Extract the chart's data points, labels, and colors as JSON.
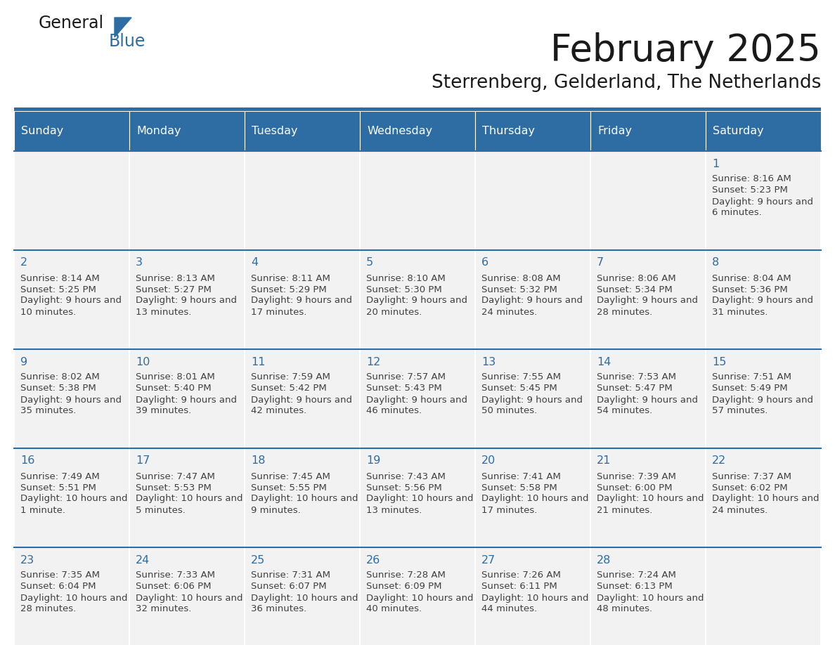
{
  "title": "February 2025",
  "subtitle": "Sterrenberg, Gelderland, The Netherlands",
  "header_bg": "#2E6DA4",
  "header_text_color": "#FFFFFF",
  "cell_bg": "#F2F2F2",
  "border_color": "#2E6DA4",
  "day_text_color": "#2E6DA4",
  "info_text_color": "#404040",
  "weekdays": [
    "Sunday",
    "Monday",
    "Tuesday",
    "Wednesday",
    "Thursday",
    "Friday",
    "Saturday"
  ],
  "logo_general_color": "#1a1a1a",
  "logo_blue_color": "#2E6DA4",
  "days": [
    {
      "day": 1,
      "col": 6,
      "row": 0,
      "sunrise": "8:16 AM",
      "sunset": "5:23 PM",
      "daylight": "9 hours and 6 minutes"
    },
    {
      "day": 2,
      "col": 0,
      "row": 1,
      "sunrise": "8:14 AM",
      "sunset": "5:25 PM",
      "daylight": "9 hours and 10 minutes"
    },
    {
      "day": 3,
      "col": 1,
      "row": 1,
      "sunrise": "8:13 AM",
      "sunset": "5:27 PM",
      "daylight": "9 hours and 13 minutes"
    },
    {
      "day": 4,
      "col": 2,
      "row": 1,
      "sunrise": "8:11 AM",
      "sunset": "5:29 PM",
      "daylight": "9 hours and 17 minutes"
    },
    {
      "day": 5,
      "col": 3,
      "row": 1,
      "sunrise": "8:10 AM",
      "sunset": "5:30 PM",
      "daylight": "9 hours and 20 minutes"
    },
    {
      "day": 6,
      "col": 4,
      "row": 1,
      "sunrise": "8:08 AM",
      "sunset": "5:32 PM",
      "daylight": "9 hours and 24 minutes"
    },
    {
      "day": 7,
      "col": 5,
      "row": 1,
      "sunrise": "8:06 AM",
      "sunset": "5:34 PM",
      "daylight": "9 hours and 28 minutes"
    },
    {
      "day": 8,
      "col": 6,
      "row": 1,
      "sunrise": "8:04 AM",
      "sunset": "5:36 PM",
      "daylight": "9 hours and 31 minutes"
    },
    {
      "day": 9,
      "col": 0,
      "row": 2,
      "sunrise": "8:02 AM",
      "sunset": "5:38 PM",
      "daylight": "9 hours and 35 minutes"
    },
    {
      "day": 10,
      "col": 1,
      "row": 2,
      "sunrise": "8:01 AM",
      "sunset": "5:40 PM",
      "daylight": "9 hours and 39 minutes"
    },
    {
      "day": 11,
      "col": 2,
      "row": 2,
      "sunrise": "7:59 AM",
      "sunset": "5:42 PM",
      "daylight": "9 hours and 42 minutes"
    },
    {
      "day": 12,
      "col": 3,
      "row": 2,
      "sunrise": "7:57 AM",
      "sunset": "5:43 PM",
      "daylight": "9 hours and 46 minutes"
    },
    {
      "day": 13,
      "col": 4,
      "row": 2,
      "sunrise": "7:55 AM",
      "sunset": "5:45 PM",
      "daylight": "9 hours and 50 minutes"
    },
    {
      "day": 14,
      "col": 5,
      "row": 2,
      "sunrise": "7:53 AM",
      "sunset": "5:47 PM",
      "daylight": "9 hours and 54 minutes"
    },
    {
      "day": 15,
      "col": 6,
      "row": 2,
      "sunrise": "7:51 AM",
      "sunset": "5:49 PM",
      "daylight": "9 hours and 57 minutes"
    },
    {
      "day": 16,
      "col": 0,
      "row": 3,
      "sunrise": "7:49 AM",
      "sunset": "5:51 PM",
      "daylight": "10 hours and 1 minute"
    },
    {
      "day": 17,
      "col": 1,
      "row": 3,
      "sunrise": "7:47 AM",
      "sunset": "5:53 PM",
      "daylight": "10 hours and 5 minutes"
    },
    {
      "day": 18,
      "col": 2,
      "row": 3,
      "sunrise": "7:45 AM",
      "sunset": "5:55 PM",
      "daylight": "10 hours and 9 minutes"
    },
    {
      "day": 19,
      "col": 3,
      "row": 3,
      "sunrise": "7:43 AM",
      "sunset": "5:56 PM",
      "daylight": "10 hours and 13 minutes"
    },
    {
      "day": 20,
      "col": 4,
      "row": 3,
      "sunrise": "7:41 AM",
      "sunset": "5:58 PM",
      "daylight": "10 hours and 17 minutes"
    },
    {
      "day": 21,
      "col": 5,
      "row": 3,
      "sunrise": "7:39 AM",
      "sunset": "6:00 PM",
      "daylight": "10 hours and 21 minutes"
    },
    {
      "day": 22,
      "col": 6,
      "row": 3,
      "sunrise": "7:37 AM",
      "sunset": "6:02 PM",
      "daylight": "10 hours and 24 minutes"
    },
    {
      "day": 23,
      "col": 0,
      "row": 4,
      "sunrise": "7:35 AM",
      "sunset": "6:04 PM",
      "daylight": "10 hours and 28 minutes"
    },
    {
      "day": 24,
      "col": 1,
      "row": 4,
      "sunrise": "7:33 AM",
      "sunset": "6:06 PM",
      "daylight": "10 hours and 32 minutes"
    },
    {
      "day": 25,
      "col": 2,
      "row": 4,
      "sunrise": "7:31 AM",
      "sunset": "6:07 PM",
      "daylight": "10 hours and 36 minutes"
    },
    {
      "day": 26,
      "col": 3,
      "row": 4,
      "sunrise": "7:28 AM",
      "sunset": "6:09 PM",
      "daylight": "10 hours and 40 minutes"
    },
    {
      "day": 27,
      "col": 4,
      "row": 4,
      "sunrise": "7:26 AM",
      "sunset": "6:11 PM",
      "daylight": "10 hours and 44 minutes"
    },
    {
      "day": 28,
      "col": 5,
      "row": 4,
      "sunrise": "7:24 AM",
      "sunset": "6:13 PM",
      "daylight": "10 hours and 48 minutes"
    }
  ]
}
